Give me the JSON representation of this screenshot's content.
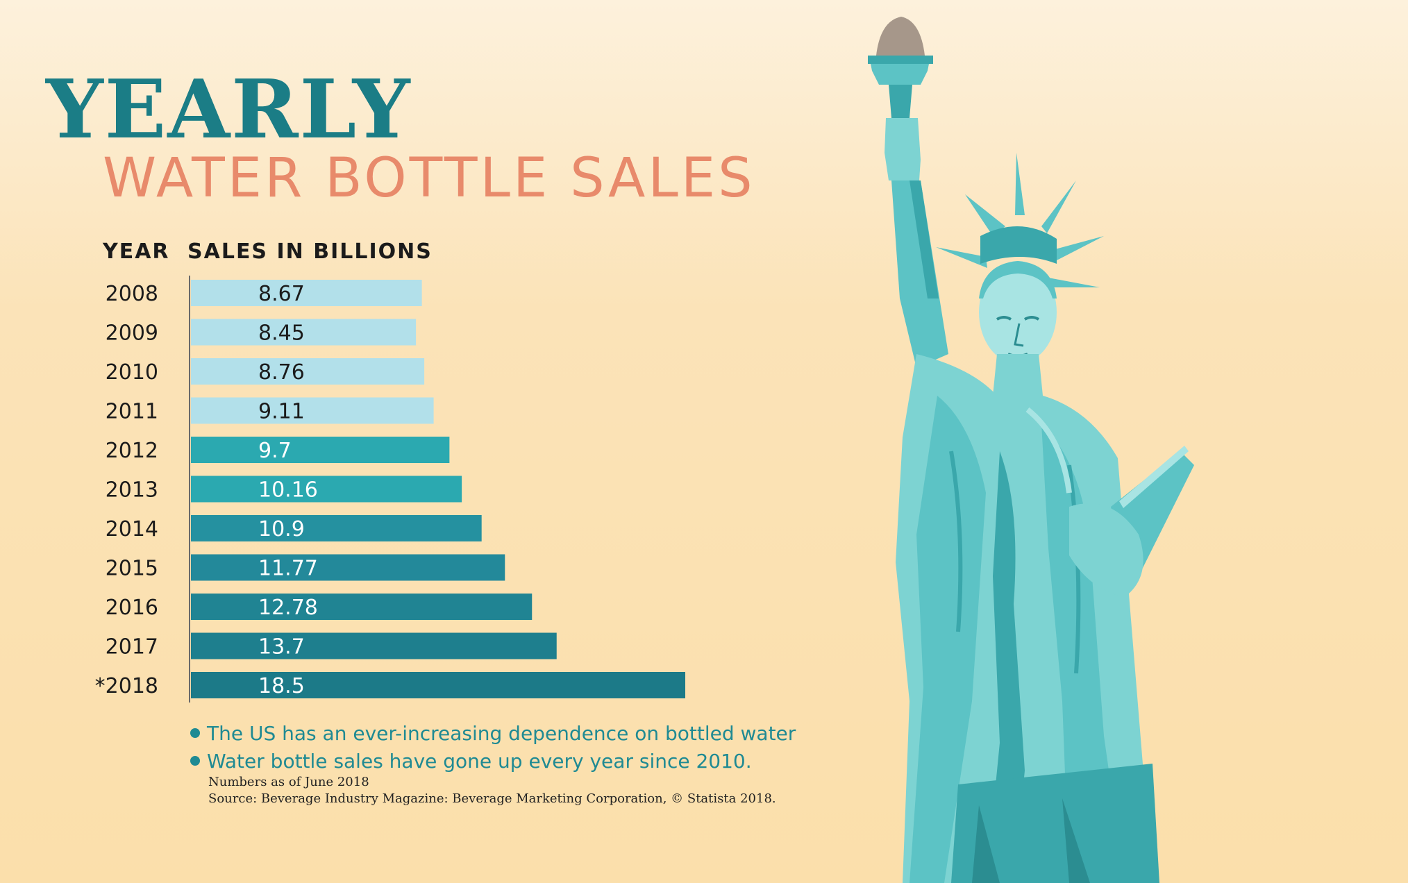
{
  "header": {
    "title": "YEARLY",
    "subtitle": "WATER BOTTLE SALES"
  },
  "columns": {
    "year": "YEAR",
    "sales": "SALES IN BILLIONS"
  },
  "chart_data": {
    "type": "bar",
    "orientation": "horizontal",
    "title": "YEARLY WATER BOTTLE SALES",
    "xlabel": "SALES IN BILLIONS",
    "ylabel": "YEAR",
    "categories": [
      "2008",
      "2009",
      "2010",
      "2011",
      "2012",
      "2013",
      "2014",
      "2015",
      "2016",
      "2017",
      "*2018"
    ],
    "values": [
      8.67,
      8.45,
      8.76,
      9.11,
      9.7,
      10.16,
      10.9,
      11.77,
      12.78,
      13.7,
      18.5
    ],
    "bar_colors": [
      "#b2e0ea",
      "#b2e0ea",
      "#b2e0ea",
      "#b2e0ea",
      "#2ba9b0",
      "#2ba9b0",
      "#2591a0",
      "#23899a",
      "#208493",
      "#1e7f8e",
      "#1c7a88"
    ],
    "grid": false,
    "legend": "none"
  },
  "bullets": [
    "The US has an ever-increasing dependence on bottled water",
    "Water bottle sales have gone up every year since 2010."
  ],
  "notes": {
    "as_of": "Numbers as of June 2018",
    "source": "Source: Beverage Industry Magazine: Beverage Marketing Corporation, © Statista 2018."
  },
  "illustration": {
    "icon": "statue-of-liberty-icon"
  }
}
